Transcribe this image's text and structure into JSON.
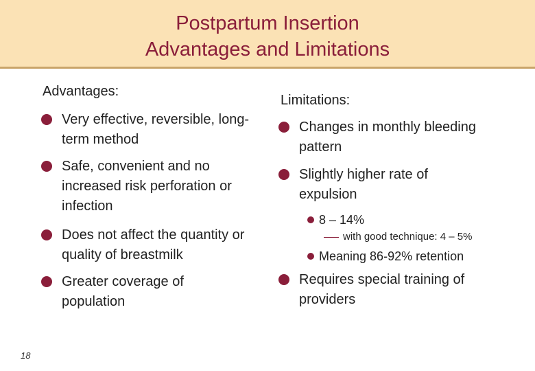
{
  "slide": {
    "title_line1": "Postpartum Insertion",
    "title_line2": "Advantages and Limitations",
    "page_number": "18"
  },
  "advantages": {
    "heading": "Advantages:",
    "items": [
      "Very effective, reversible, long-term method",
      "Safe, convenient and no increased risk perforation or infection",
      "Does not affect the quantity or quality of breastmilk",
      "Greater coverage of population"
    ]
  },
  "limitations": {
    "heading": "Limitations:",
    "items": [
      "Changes in monthly bleeding pattern",
      "Slightly higher rate of expulsion",
      "Requires special training of providers"
    ],
    "expulsion_sub": {
      "rate": "8 – 14%",
      "good_technique": "with good technique: 4 – 5%",
      "retention": "Meaning 86-92% retention"
    }
  },
  "colors": {
    "title_band": "#fbe2b5",
    "title_text": "#8a1e3a",
    "bullet": "#8a1e3a"
  }
}
